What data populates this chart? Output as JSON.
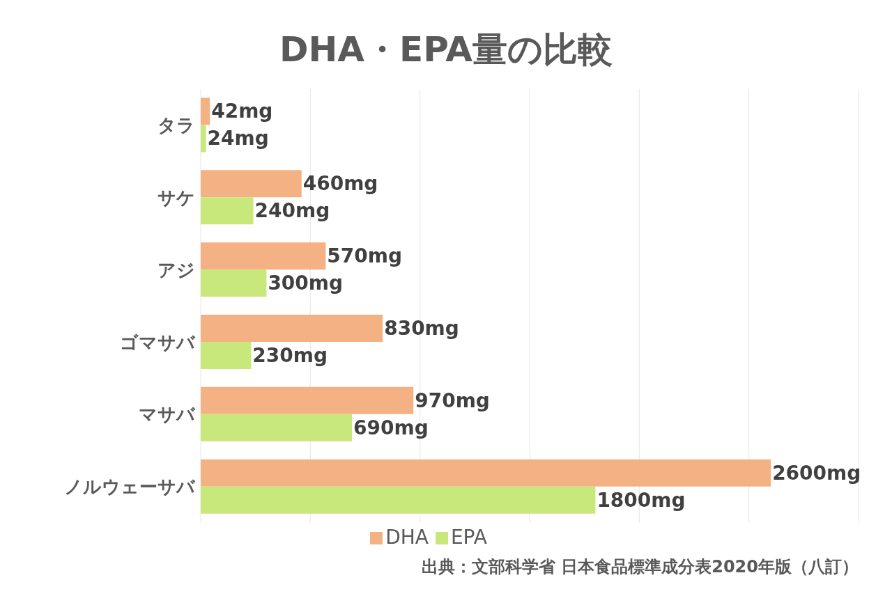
{
  "chart_data": {
    "type": "bar",
    "orientation": "horizontal",
    "title": "DHA・EPA量の比較",
    "categories": [
      "タラ",
      "サケ",
      "アジ",
      "ゴマサバ",
      "マサバ",
      "ノルウェーサバ"
    ],
    "series": [
      {
        "name": "DHA",
        "color": "#f4b183",
        "values": [
          42,
          460,
          570,
          830,
          970,
          2600
        ],
        "value_labels": [
          "42mg",
          "460mg",
          "570mg",
          "830mg",
          "970mg",
          "2600mg"
        ]
      },
      {
        "name": "EPA",
        "color": "#c9e87c",
        "values": [
          24,
          240,
          300,
          230,
          690,
          1800
        ],
        "value_labels": [
          "24mg",
          "240mg",
          "300mg",
          "230mg",
          "690mg",
          "1800mg"
        ]
      }
    ],
    "xlim": [
      0,
      3000
    ],
    "xticks": [
      {
        "value": 0,
        "label": null
      },
      {
        "value": 500,
        "label": null
      },
      {
        "value": 1000,
        "label": null
      },
      {
        "value": 1500,
        "label": null
      },
      {
        "value": 2000,
        "label": null
      },
      {
        "value": 2500,
        "label": null
      },
      {
        "value": 3000,
        "label": null
      }
    ],
    "tick_labels": "y",
    "grid": "x",
    "legend": "bottom",
    "annotations": [
      "出典：文部科学省 日本食品標準成分表2020年版（八訂）"
    ]
  }
}
